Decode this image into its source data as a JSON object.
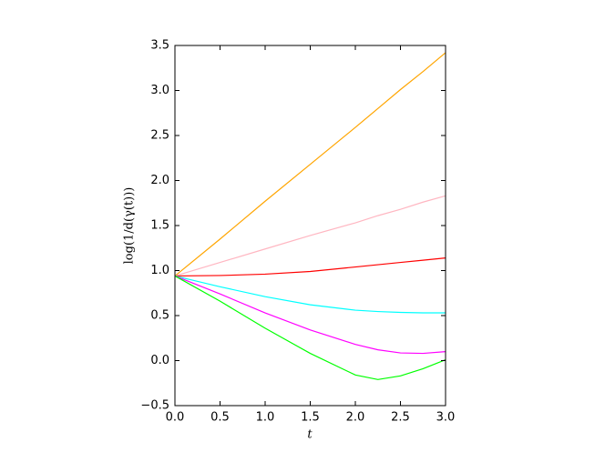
{
  "chart_data": {
    "type": "line",
    "xlabel": "t",
    "ylabel": "log(1/d(γ(t)))",
    "x": [
      0,
      0.5,
      1,
      1.5,
      2,
      2.25,
      2.5,
      2.75,
      3
    ],
    "series": [
      {
        "color": "#ffa500",
        "values": [
          0.94,
          1.35,
          1.77,
          2.18,
          2.59,
          2.8,
          3.01,
          3.21,
          3.42
        ]
      },
      {
        "color": "#ffb6c1",
        "values": [
          0.94,
          1.09,
          1.24,
          1.39,
          1.53,
          1.61,
          1.68,
          1.76,
          1.83
        ]
      },
      {
        "color": "#ff0000",
        "values": [
          0.94,
          0.945,
          0.96,
          0.99,
          1.04,
          1.065,
          1.09,
          1.115,
          1.14
        ]
      },
      {
        "color": "#00ffff",
        "values": [
          0.94,
          0.82,
          0.71,
          0.62,
          0.56,
          0.545,
          0.535,
          0.53,
          0.53
        ]
      },
      {
        "color": "#ff00ff",
        "values": [
          0.94,
          0.74,
          0.53,
          0.34,
          0.18,
          0.12,
          0.085,
          0.08,
          0.1
        ]
      },
      {
        "color": "#00ff00",
        "values": [
          0.94,
          0.66,
          0.36,
          0.08,
          -0.16,
          -0.21,
          -0.17,
          -0.09,
          0.01
        ]
      }
    ],
    "xlim": [
      0,
      3
    ],
    "ylim": [
      -0.5,
      3.5
    ],
    "xticks": [
      {
        "value": 0,
        "label": "0.0"
      },
      {
        "value": 0.5,
        "label": "0.5"
      },
      {
        "value": 1,
        "label": "1.0"
      },
      {
        "value": 1.5,
        "label": "1.5"
      },
      {
        "value": 2,
        "label": "2.0"
      },
      {
        "value": 2.5,
        "label": "2.5"
      },
      {
        "value": 3,
        "label": "3.0"
      }
    ],
    "yticks": [
      {
        "value": -0.5,
        "label": "−0.5"
      },
      {
        "value": 0,
        "label": "0.0"
      },
      {
        "value": 0.5,
        "label": "0.5"
      },
      {
        "value": 1,
        "label": "1.0"
      },
      {
        "value": 1.5,
        "label": "1.5"
      },
      {
        "value": 2,
        "label": "2.0"
      },
      {
        "value": 2.5,
        "label": "2.5"
      },
      {
        "value": 3,
        "label": "3.0"
      },
      {
        "value": 3.5,
        "label": "3.5"
      }
    ],
    "grid": false
  }
}
